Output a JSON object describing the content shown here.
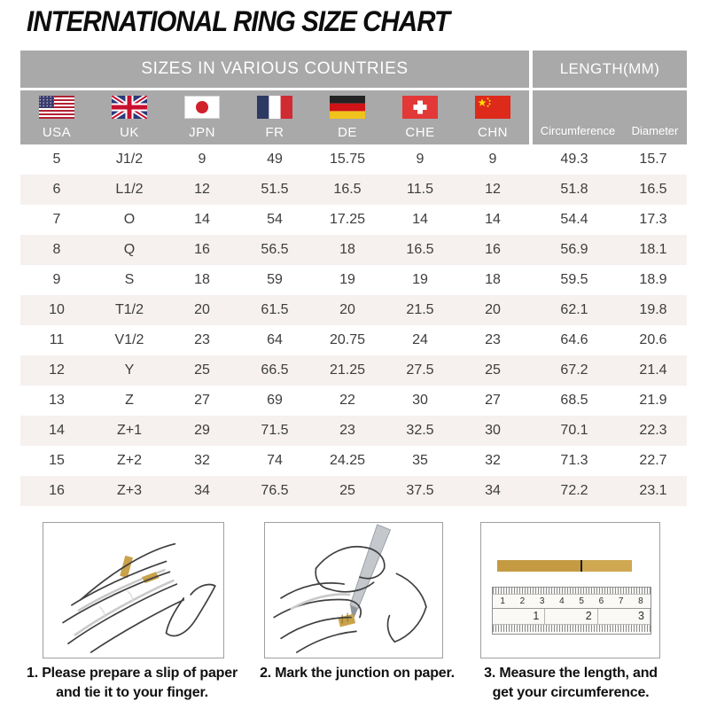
{
  "page_title": "INTERNATIONAL RING SIZE CHART",
  "chart_data": {
    "type": "table",
    "title": "INTERNATIONAL RING SIZE CHART",
    "group_headers": {
      "countries": "SIZES IN VARIOUS COUNTRIES",
      "length": "LENGTH(MM)"
    },
    "country_columns": [
      "USA",
      "UK",
      "JPN",
      "FR",
      "DE",
      "CHE",
      "CHN"
    ],
    "length_columns": [
      "Circumference",
      "Diameter"
    ],
    "rows": [
      [
        "5",
        "J1/2",
        "9",
        "49",
        "15.75",
        "9",
        "9",
        "49.3",
        "15.7"
      ],
      [
        "6",
        "L1/2",
        "12",
        "51.5",
        "16.5",
        "11.5",
        "12",
        "51.8",
        "16.5"
      ],
      [
        "7",
        "O",
        "14",
        "54",
        "17.25",
        "14",
        "14",
        "54.4",
        "17.3"
      ],
      [
        "8",
        "Q",
        "16",
        "56.5",
        "18",
        "16.5",
        "16",
        "56.9",
        "18.1"
      ],
      [
        "9",
        "S",
        "18",
        "59",
        "19",
        "19",
        "18",
        "59.5",
        "18.9"
      ],
      [
        "10",
        "T1/2",
        "20",
        "61.5",
        "20",
        "21.5",
        "20",
        "62.1",
        "19.8"
      ],
      [
        "11",
        "V1/2",
        "23",
        "64",
        "20.75",
        "24",
        "23",
        "64.6",
        "20.6"
      ],
      [
        "12",
        "Y",
        "25",
        "66.5",
        "21.25",
        "27.5",
        "25",
        "67.2",
        "21.4"
      ],
      [
        "13",
        "Z",
        "27",
        "69",
        "22",
        "30",
        "27",
        "68.5",
        "21.9"
      ],
      [
        "14",
        "Z+1",
        "29",
        "71.5",
        "23",
        "32.5",
        "30",
        "70.1",
        "22.3"
      ],
      [
        "15",
        "Z+2",
        "32",
        "74",
        "24.25",
        "35",
        "32",
        "71.3",
        "22.7"
      ],
      [
        "16",
        "Z+3",
        "34",
        "76.5",
        "25",
        "37.5",
        "34",
        "72.2",
        "23.1"
      ]
    ]
  },
  "flags": [
    "flag-usa-icon",
    "flag-uk-icon",
    "flag-jpn-icon",
    "flag-fr-icon",
    "flag-de-icon",
    "flag-che-icon",
    "flag-chn-icon"
  ],
  "instructions": [
    {
      "lines": [
        "1. Please prepare a slip of paper",
        "and tie it to your finger."
      ]
    },
    {
      "lines": [
        "2. Mark the junction on paper."
      ]
    },
    {
      "lines": [
        "3. Measure the length, and",
        "get your circumference."
      ]
    }
  ],
  "ruler": {
    "top_numbers": [
      "1",
      "2",
      "3",
      "4",
      "5",
      "6",
      "7",
      "8"
    ],
    "bottom_numbers": [
      "1",
      "2",
      "3"
    ]
  },
  "colors": {
    "header_bg": "#a9a9a9",
    "row_alt_bg": "#f6f1ee",
    "paper_strip_gold": "#c9a24b",
    "title_text": "#0d0d0d",
    "cell_text": "#3d3d3d"
  }
}
